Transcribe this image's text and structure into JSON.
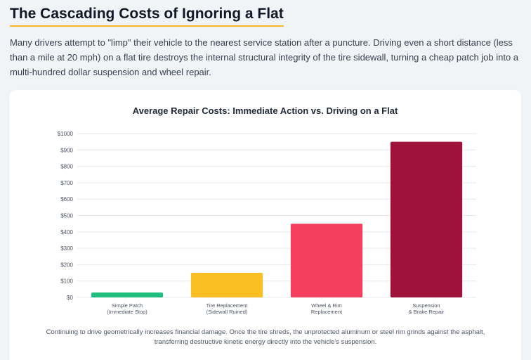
{
  "page": {
    "title": "The Cascading Costs of Ignoring a Flat",
    "intro": "Many drivers attempt to \"limp\" their vehicle to the nearest service station after a puncture. Driving even a short distance (less than a mile at 20 mph) on a flat tire destroys the internal structural integrity of the tire sidewall, turning a cheap patch job into a multi-hundred dollar suspension and wheel repair.",
    "caption": "Continuing to drive geometrically increases financial damage. Once the tire shreds, the unprotected aluminum or steel rim grinds against the asphalt, transferring destructive kinetic energy directly into the vehicle's suspension."
  },
  "chart_data": {
    "type": "bar",
    "title": "Average Repair Costs: Immediate Action vs. Driving on a Flat",
    "categories": [
      [
        "Simple Patch",
        "(Immediate Stop)"
      ],
      [
        "Tire Replacement",
        "(Sidewall Ruined)"
      ],
      [
        "Wheel & Rim",
        "Replacement"
      ],
      [
        "Suspension",
        "& Brake Repair"
      ]
    ],
    "values": [
      30,
      150,
      450,
      950
    ],
    "colors": [
      "#1fbe7e",
      "#fbbf24",
      "#f43f5e",
      "#9f1239"
    ],
    "ylim": [
      0,
      1000
    ],
    "yticks": [
      0,
      100,
      200,
      300,
      400,
      500,
      600,
      700,
      800,
      900,
      1000
    ],
    "ytick_labels": [
      "$0",
      "$100",
      "$200",
      "$300",
      "$400",
      "$500",
      "$600",
      "$700",
      "$800",
      "$900",
      "$1000"
    ],
    "xlabel": "",
    "ylabel": "",
    "grid": true
  }
}
